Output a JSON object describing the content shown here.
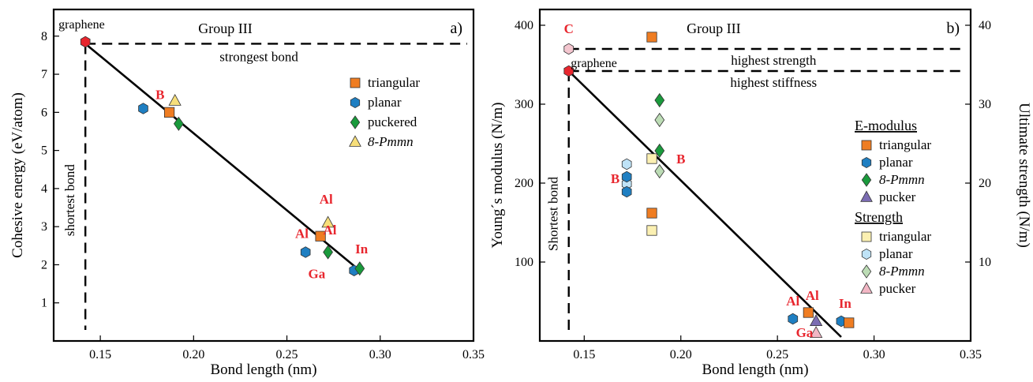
{
  "colors": {
    "triangular": "#ef7d22",
    "planar": "#1f7fc2",
    "puckered": "#1a9a3c",
    "pmmn": "#f7df7a",
    "pucker": "#7b6cb2",
    "s_triangular": "#fbf0b2",
    "s_planar": "#bfe3f7",
    "s_pmmn": "#bcdcb5",
    "s_pucker": "#f2b6c4",
    "graphene": "#e8262e",
    "c_strength": "#f4c6cf",
    "label_red": "#e8262e"
  },
  "chart_data": [
    {
      "type": "scatter",
      "panel": "a)",
      "ylabel": "Cohesive energy (eV/atom)",
      "xlabel": "Bond length (nm)",
      "xlim": [
        0.125,
        0.35
      ],
      "ylim": [
        0,
        8.7
      ],
      "x_ticks": [
        "0.15",
        "0.20",
        "0.25",
        "0.30",
        "0.35"
      ],
      "x_tick_values": [
        0.15,
        0.2,
        0.25,
        0.3,
        0.35
      ],
      "y_ticks": [
        "1",
        "2",
        "3",
        "4",
        "5",
        "6",
        "7",
        "8"
      ],
      "y_tick_values": [
        1,
        2,
        3,
        4,
        5,
        6,
        7,
        8
      ],
      "group_label": "Group III",
      "reference_h_label": "strongest bond",
      "reference_h_value": 7.8,
      "reference_v_label": "shortest bond",
      "reference_v_value": 0.142,
      "trend_line": [
        [
          0.142,
          7.8
        ],
        [
          0.289,
          1.85
        ]
      ],
      "legend": [
        {
          "name": "triangular",
          "marker": "square",
          "color_key": "triangular"
        },
        {
          "name": "planar",
          "marker": "hexagon",
          "color_key": "planar"
        },
        {
          "name": "puckered",
          "marker": "diamond",
          "color_key": "puckered"
        },
        {
          "name": "8-Pmmn",
          "marker": "triangle",
          "color_key": "pmmn",
          "italic": true
        }
      ],
      "points": [
        {
          "series": "graphene",
          "marker": "hexagon",
          "color_key": "graphene",
          "x": 0.142,
          "y": 7.85
        },
        {
          "series": "planar",
          "marker": "hexagon",
          "color_key": "planar",
          "x": 0.173,
          "y": 6.1
        },
        {
          "series": "triangular",
          "marker": "square",
          "color_key": "triangular",
          "x": 0.187,
          "y": 6.0
        },
        {
          "series": "8-Pmmn",
          "marker": "triangle",
          "color_key": "pmmn",
          "x": 0.19,
          "y": 6.3
        },
        {
          "series": "puckered",
          "marker": "diamond",
          "color_key": "puckered",
          "x": 0.192,
          "y": 5.7
        },
        {
          "series": "planar",
          "marker": "hexagon",
          "color_key": "planar",
          "x": 0.26,
          "y": 2.33
        },
        {
          "series": "triangular",
          "marker": "square",
          "color_key": "triangular",
          "x": 0.268,
          "y": 2.75
        },
        {
          "series": "8-Pmmn",
          "marker": "triangle",
          "color_key": "pmmn",
          "x": 0.272,
          "y": 3.1
        },
        {
          "series": "puckered",
          "marker": "diamond",
          "color_key": "puckered",
          "x": 0.272,
          "y": 2.33
        },
        {
          "series": "planar",
          "marker": "hexagon",
          "color_key": "planar",
          "x": 0.286,
          "y": 1.85
        },
        {
          "series": "puckered",
          "marker": "diamond",
          "color_key": "puckered",
          "x": 0.289,
          "y": 1.9
        }
      ],
      "point_labels": [
        {
          "text": "graphene",
          "x": 0.14,
          "y": 8.2,
          "color": "black"
        },
        {
          "text": "B",
          "x": 0.182,
          "y": 6.35,
          "color": "red"
        },
        {
          "text": "Al",
          "x": 0.271,
          "y": 3.6,
          "color": "red"
        },
        {
          "text": "Al",
          "x": 0.258,
          "y": 2.7,
          "color": "red"
        },
        {
          "text": "Al",
          "x": 0.273,
          "y": 2.8,
          "color": "red"
        },
        {
          "text": "Ga",
          "x": 0.266,
          "y": 1.65,
          "color": "red"
        },
        {
          "text": "In",
          "x": 0.29,
          "y": 2.3,
          "color": "red"
        }
      ]
    },
    {
      "type": "scatter",
      "panel": "b)",
      "ylabel": "Young´s modulus (N/m)",
      "y2label": "Ultimate strength (N/m)",
      "xlabel": "Bond length (nm)",
      "xlim": [
        0.127,
        0.35
      ],
      "ylim": [
        0,
        420
      ],
      "y2lim": [
        0,
        42
      ],
      "x_ticks": [
        "0.15",
        "0.20",
        "0.25",
        "0.30",
        "0.35"
      ],
      "x_tick_values": [
        0.15,
        0.2,
        0.25,
        0.3,
        0.35
      ],
      "y_ticks": [
        "100",
        "200",
        "300",
        "400"
      ],
      "y_tick_values": [
        100,
        200,
        300,
        400
      ],
      "y2_ticks": [
        "10",
        "20",
        "30",
        "40"
      ],
      "y2_tick_values": [
        10,
        20,
        30,
        40
      ],
      "group_label": "Group III",
      "reference_h": [
        {
          "label": "highest strength",
          "value": 370
        },
        {
          "label": "highest stiffness",
          "value": 342
        }
      ],
      "reference_v_label": "Shortest bond",
      "reference_v_value": 0.142,
      "trend_line": [
        [
          0.142,
          342
        ],
        [
          0.283,
          5
        ]
      ],
      "legend_sections": [
        {
          "title": "E-modulus",
          "items": [
            {
              "name": "triangular",
              "marker": "square",
              "color_key": "triangular"
            },
            {
              "name": "planar",
              "marker": "hexagon",
              "color_key": "planar"
            },
            {
              "name": "8-Pmmn",
              "marker": "diamond",
              "color_key": "puckered",
              "italic": true
            },
            {
              "name": "pucker",
              "marker": "triangle",
              "color_key": "pucker"
            }
          ]
        },
        {
          "title": "Strength",
          "items": [
            {
              "name": "triangular",
              "marker": "square",
              "color_key": "s_triangular"
            },
            {
              "name": "planar",
              "marker": "hexagon",
              "color_key": "s_planar"
            },
            {
              "name": "8-Pmmn",
              "marker": "diamond",
              "color_key": "s_pmmn",
              "italic": true
            },
            {
              "name": "pucker",
              "marker": "triangle",
              "color_key": "s_pucker"
            }
          ]
        }
      ],
      "points": [
        {
          "series": "C strength",
          "marker": "hexagon",
          "color_key": "c_strength",
          "x": 0.142,
          "y": 370
        },
        {
          "series": "graphene",
          "marker": "hexagon",
          "color_key": "graphene",
          "x": 0.142,
          "y": 342
        },
        {
          "series": "E triangular",
          "marker": "square",
          "color_key": "triangular",
          "x": 0.185,
          "y": 385
        },
        {
          "series": "E triangular",
          "marker": "square",
          "color_key": "triangular",
          "x": 0.185,
          "y": 162
        },
        {
          "series": "S triangular",
          "marker": "square",
          "color_key": "s_triangular",
          "x": 0.185,
          "y": 231
        },
        {
          "series": "S triangular",
          "marker": "square",
          "color_key": "s_triangular",
          "x": 0.185,
          "y": 140
        },
        {
          "series": "S planar",
          "marker": "hexagon",
          "color_key": "s_planar",
          "x": 0.172,
          "y": 224
        },
        {
          "series": "S planar",
          "marker": "hexagon",
          "color_key": "s_planar",
          "x": 0.172,
          "y": 199
        },
        {
          "series": "E planar",
          "marker": "hexagon",
          "color_key": "planar",
          "x": 0.172,
          "y": 208
        },
        {
          "series": "E planar",
          "marker": "hexagon",
          "color_key": "planar",
          "x": 0.172,
          "y": 189
        },
        {
          "series": "E 8-Pmmn",
          "marker": "diamond",
          "color_key": "puckered",
          "x": 0.189,
          "y": 305
        },
        {
          "series": "E 8-Pmmn",
          "marker": "diamond",
          "color_key": "puckered",
          "x": 0.189,
          "y": 241
        },
        {
          "series": "S 8-Pmmn",
          "marker": "diamond",
          "color_key": "s_pmmn",
          "x": 0.189,
          "y": 280
        },
        {
          "series": "S 8-Pmmn",
          "marker": "diamond",
          "color_key": "s_pmmn",
          "x": 0.189,
          "y": 215
        },
        {
          "series": "E planar",
          "marker": "hexagon",
          "color_key": "planar",
          "x": 0.258,
          "y": 28
        },
        {
          "series": "E triangular",
          "marker": "square",
          "color_key": "triangular",
          "x": 0.266,
          "y": 36
        },
        {
          "series": "E pucker",
          "marker": "triangle",
          "color_key": "pucker",
          "x": 0.27,
          "y": 25
        },
        {
          "series": "S pucker",
          "marker": "triangle",
          "color_key": "s_pucker",
          "x": 0.27,
          "y": 10
        },
        {
          "series": "E planar",
          "marker": "hexagon",
          "color_key": "planar",
          "x": 0.283,
          "y": 25
        },
        {
          "series": "E triangular",
          "marker": "square",
          "color_key": "triangular",
          "x": 0.287,
          "y": 23
        }
      ],
      "point_labels": [
        {
          "text": "C",
          "x": 0.142,
          "y": 390,
          "color": "red"
        },
        {
          "text": "graphene",
          "x": 0.155,
          "y": 347,
          "color": "black"
        },
        {
          "text": "B",
          "x": 0.166,
          "y": 200,
          "color": "red"
        },
        {
          "text": "B",
          "x": 0.2,
          "y": 225,
          "color": "red"
        },
        {
          "text": "Al",
          "x": 0.258,
          "y": 45,
          "color": "red"
        },
        {
          "text": "Al",
          "x": 0.268,
          "y": 52,
          "color": "red"
        },
        {
          "text": "In",
          "x": 0.285,
          "y": 42,
          "color": "red"
        },
        {
          "text": "Ga",
          "x": 0.264,
          "y": 5,
          "color": "red"
        }
      ]
    }
  ]
}
